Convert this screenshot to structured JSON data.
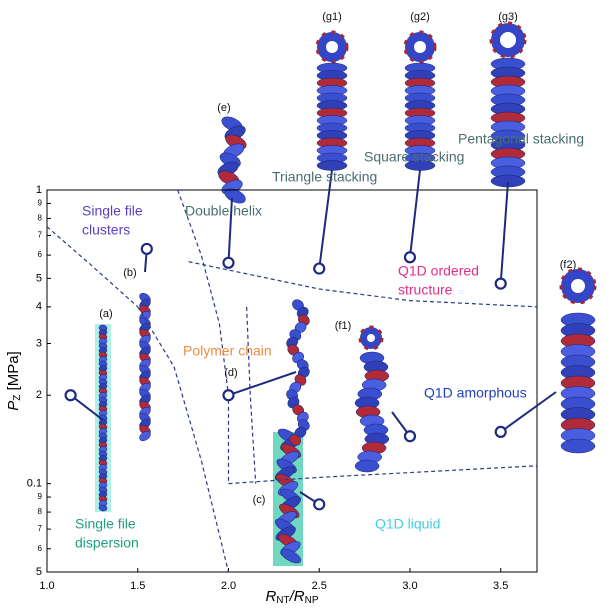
{
  "chart_data": {
    "type": "phase_diagram",
    "x_label": [
      "R",
      "NT",
      "/R",
      "NP"
    ],
    "y_label": [
      "P",
      "Z",
      " [MPa]"
    ],
    "xlim": [
      1.0,
      3.7
    ],
    "xticks": [
      {
        "value": 1.0,
        "label": "1.0"
      },
      {
        "value": 1.5,
        "label": "1.5"
      },
      {
        "value": 2.0,
        "label": "2.0"
      },
      {
        "value": 2.5,
        "label": "2.5"
      },
      {
        "value": 3.0,
        "label": "3.0"
      },
      {
        "value": 3.5,
        "label": "3.5"
      }
    ],
    "ylim": [
      0.05,
      1
    ],
    "log_y": true,
    "yticks": [
      1,
      {
        "value": 0.9,
        "label": "9"
      },
      {
        "value": 0.8,
        "label": "8"
      },
      {
        "value": 0.7,
        "label": "7"
      },
      {
        "value": 0.6,
        "label": "6"
      },
      {
        "value": 0.5,
        "label": "5"
      },
      {
        "value": 0.4,
        "label": "4"
      },
      {
        "value": 0.3,
        "label": "3"
      },
      {
        "value": 0.2,
        "label": "2"
      },
      0.1,
      {
        "value": 0.09,
        "label": "9"
      },
      {
        "value": 0.08,
        "label": "8"
      },
      {
        "value": 0.07,
        "label": "7"
      },
      {
        "value": 0.06,
        "label": "6"
      },
      {
        "value": 0.05,
        "label": "5"
      }
    ],
    "boundary_color": "#2b3a8c",
    "boundaries": [
      {
        "x": [
          1.0,
          1.25,
          1.5
        ],
        "y": [
          0.75,
          0.55,
          0.4
        ]
      },
      {
        "x": [
          1.5,
          1.7,
          1.85,
          2.0
        ],
        "y": [
          0.4,
          0.25,
          0.12,
          0.05
        ]
      },
      {
        "x": [
          1.72,
          1.85,
          1.95,
          2.0,
          2.0
        ],
        "y": [
          1,
          0.6,
          0.35,
          0.2,
          0.1
        ]
      },
      {
        "x": [
          1.78,
          2.5,
          3.0,
          3.7
        ],
        "y": [
          0.57,
          0.46,
          0.42,
          0.4
        ]
      },
      {
        "x": [
          2.1,
          2.12,
          2.15
        ],
        "y": [
          0.4,
          0.2,
          0.1
        ]
      },
      {
        "x": [
          2.0,
          2.5,
          3.7
        ],
        "y": [
          0.1,
          0.105,
          0.115
        ]
      }
    ],
    "marker_color": "#1e2a80",
    "markers": {
      "x": [
        1.13,
        1.55,
        2.0,
        2.5,
        3.0,
        3.5,
        2.0,
        3.0,
        3.5,
        2.5
      ],
      "y": [
        0.2,
        0.63,
        0.565,
        0.54,
        0.59,
        0.48,
        0.2,
        0.145,
        0.15,
        0.085
      ]
    },
    "regions": [
      {
        "lines": [
          "Single file",
          "clusters"
        ],
        "color": "#5b3fbf"
      },
      {
        "lines": [
          "Double helix"
        ],
        "color": "#4a6e70"
      },
      {
        "lines": [
          "Triangle stacking"
        ],
        "color": "#4a6e70"
      },
      {
        "lines": [
          "Square stacking"
        ],
        "color": "#4a6e70"
      },
      {
        "lines": [
          "Pentagonal stacking"
        ],
        "color": "#4a6e70"
      },
      {
        "lines": [
          "Q1D ordered",
          "structure"
        ],
        "color": "#e0308a"
      },
      {
        "lines": [
          "Polymer chain"
        ],
        "color": "#f08a40"
      },
      {
        "lines": [
          "Q1D amorphous"
        ],
        "color": "#2040c0"
      },
      {
        "lines": [
          "Single file",
          "dispersion"
        ],
        "color": "#20a080"
      },
      {
        "lines": [
          "Q1D liquid"
        ],
        "color": "#40d0e0"
      }
    ],
    "panels": [
      "(a)",
      "(b)",
      "(c)",
      "(d)",
      "(e)",
      "(f1)",
      "(f2)",
      "(g1)",
      "(g2)",
      "(g3)"
    ]
  }
}
